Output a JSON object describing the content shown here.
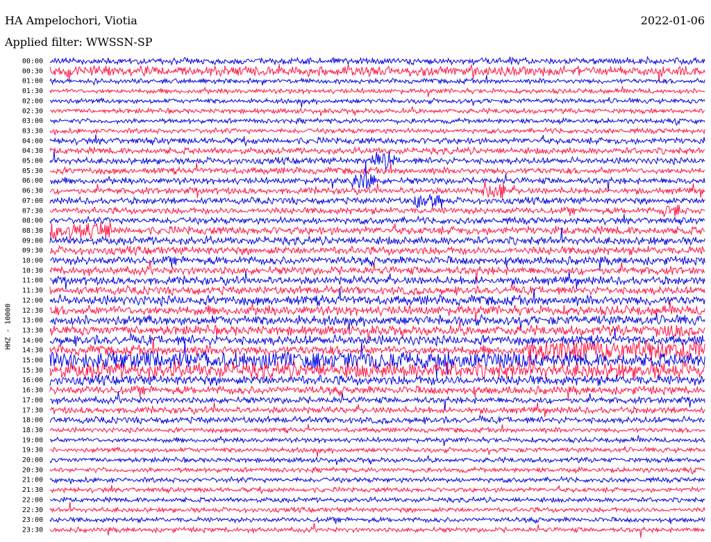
{
  "header": {
    "station": "HA Ampelochori, Viotia",
    "date": "2022-01-06",
    "filter": "Applied filter: WWSSN-SP"
  },
  "chart_data": {
    "type": "line",
    "title": "HA Ampelochori, Viotia",
    "ylabel": "HHZ - 10000",
    "rows": [
      "00:00",
      "00:30",
      "01:00",
      "01:30",
      "02:00",
      "02:30",
      "03:00",
      "03:30",
      "04:00",
      "04:30",
      "05:00",
      "05:30",
      "06:00",
      "06:30",
      "07:00",
      "07:30",
      "08:00",
      "08:30",
      "09:00",
      "09:30",
      "10:00",
      "10:30",
      "11:00",
      "11:30",
      "12:00",
      "12:30",
      "13:00",
      "13:30",
      "14:00",
      "14:30",
      "15:00",
      "15:30",
      "16:00",
      "16:30",
      "17:00",
      "17:30",
      "18:00",
      "18:30",
      "19:00",
      "19:30",
      "20:00",
      "20:30",
      "21:00",
      "21:30",
      "22:00",
      "22:30",
      "23:00",
      "23:30"
    ],
    "series_colors": [
      "#0000e0",
      "#ff1040"
    ],
    "noise_level": [
      4,
      6,
      3,
      3,
      3,
      3,
      3,
      3,
      4,
      4,
      4,
      4,
      4,
      4,
      4,
      4,
      4,
      5,
      5,
      5,
      5,
      5,
      5,
      5,
      6,
      6,
      6,
      6,
      6,
      6,
      9,
      10,
      6,
      5,
      4,
      4,
      4,
      3,
      3,
      3,
      3,
      3,
      3,
      3,
      3,
      3,
      3,
      3
    ],
    "bursts": [
      {
        "row": 10,
        "start": 0.49,
        "end": 0.525,
        "amp": 14
      },
      {
        "row": 12,
        "start": 0.455,
        "end": 0.495,
        "amp": 14
      },
      {
        "row": 13,
        "start": 0.66,
        "end": 0.695,
        "amp": 14
      },
      {
        "row": 14,
        "start": 0.555,
        "end": 0.6,
        "amp": 12
      },
      {
        "row": 15,
        "start": 0.935,
        "end": 0.96,
        "amp": 12
      },
      {
        "row": 17,
        "start": 0.0,
        "end": 0.095,
        "amp": 14
      },
      {
        "row": 27,
        "start": 0.925,
        "end": 0.965,
        "amp": 12
      },
      {
        "row": 29,
        "start": 0.73,
        "end": 1.0,
        "amp": 16
      },
      {
        "row": 30,
        "start": 0.0,
        "end": 0.73,
        "amp": 14
      }
    ]
  }
}
